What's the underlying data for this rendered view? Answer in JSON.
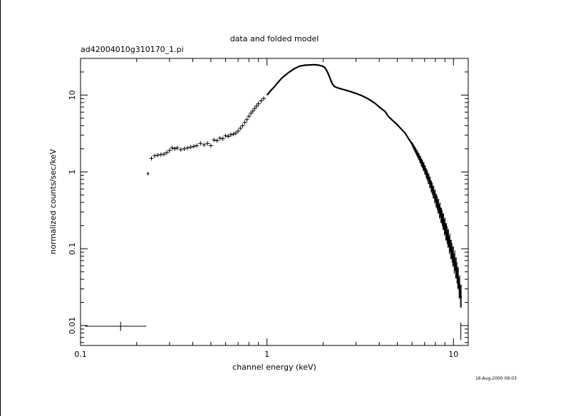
{
  "chart_data": {
    "type": "scatter",
    "title": "data and folded model",
    "subtitle": "ad42004010g310170_1.pi",
    "xlabel": "channel energy (keV)",
    "ylabel": "normalized counts/sec/keV",
    "x_scale": "log",
    "y_scale": "log",
    "xlim": [
      0.1,
      12
    ],
    "ylim": [
      0.0055,
      30
    ],
    "x_ticks": [
      {
        "value": 0.1,
        "label": "0.1"
      },
      {
        "value": 1,
        "label": "1"
      },
      {
        "value": 10,
        "label": "10"
      }
    ],
    "y_ticks": [
      {
        "value": 0.01,
        "label": "0.01"
      },
      {
        "value": 0.1,
        "label": "0.1"
      },
      {
        "value": 1,
        "label": "1"
      },
      {
        "value": 10,
        "label": "10"
      }
    ],
    "grid": false,
    "footer": "16-Aug-2000 09:03",
    "series": [
      {
        "points": [
          {
            "x": 0.164,
            "y": 0.0098,
            "xerr": [
              0.106,
              0.225
            ],
            "yerr": [
              0.0085,
              0.0112
            ]
          },
          {
            "x": 0.23,
            "y": 0.95,
            "xerr": [
              0.226,
              0.234
            ],
            "yerr": [
              0.9,
              1.0
            ]
          },
          {
            "x": 0.24,
            "y": 1.5
          },
          {
            "x": 0.25,
            "y": 1.62
          },
          {
            "x": 0.26,
            "y": 1.65
          },
          {
            "x": 0.27,
            "y": 1.68
          },
          {
            "x": 0.28,
            "y": 1.7
          },
          {
            "x": 0.29,
            "y": 1.78
          },
          {
            "x": 0.3,
            "y": 1.9
          },
          {
            "x": 0.31,
            "y": 2.05
          },
          {
            "x": 0.32,
            "y": 2.0
          },
          {
            "x": 0.33,
            "y": 2.05
          },
          {
            "x": 0.345,
            "y": 1.95
          },
          {
            "x": 0.36,
            "y": 2.0
          },
          {
            "x": 0.375,
            "y": 2.05
          },
          {
            "x": 0.39,
            "y": 2.1
          },
          {
            "x": 0.405,
            "y": 2.15
          },
          {
            "x": 0.42,
            "y": 2.2
          },
          {
            "x": 0.44,
            "y": 2.35
          },
          {
            "x": 0.46,
            "y": 2.25
          },
          {
            "x": 0.48,
            "y": 2.35
          },
          {
            "x": 0.5,
            "y": 2.2
          },
          {
            "x": 0.52,
            "y": 2.6
          },
          {
            "x": 0.54,
            "y": 2.55
          },
          {
            "x": 0.56,
            "y": 2.75
          },
          {
            "x": 0.58,
            "y": 2.7
          },
          {
            "x": 0.6,
            "y": 2.95
          },
          {
            "x": 0.62,
            "y": 2.9
          },
          {
            "x": 0.64,
            "y": 3.05
          },
          {
            "x": 0.66,
            "y": 3.1
          },
          {
            "x": 0.68,
            "y": 3.2
          },
          {
            "x": 0.7,
            "y": 3.4
          },
          {
            "x": 0.72,
            "y": 3.7
          },
          {
            "x": 0.74,
            "y": 4.0
          },
          {
            "x": 0.76,
            "y": 4.4
          },
          {
            "x": 0.78,
            "y": 4.8
          },
          {
            "x": 0.8,
            "y": 5.3
          },
          {
            "x": 0.82,
            "y": 5.8
          },
          {
            "x": 0.84,
            "y": 6.2
          },
          {
            "x": 0.86,
            "y": 6.7
          },
          {
            "x": 0.88,
            "y": 7.2
          },
          {
            "x": 0.9,
            "y": 7.7
          },
          {
            "x": 0.93,
            "y": 8.4
          },
          {
            "x": 0.96,
            "y": 9.0
          }
        ]
      },
      {
        "points": [
          {
            "x": 1.0,
            "y": 10.0
          },
          {
            "x": 1.05,
            "y": 11.5
          },
          {
            "x": 1.1,
            "y": 13.0
          },
          {
            "x": 1.15,
            "y": 14.8
          },
          {
            "x": 1.2,
            "y": 16.6
          },
          {
            "x": 1.3,
            "y": 19.5
          },
          {
            "x": 1.4,
            "y": 22.0
          },
          {
            "x": 1.5,
            "y": 23.8
          },
          {
            "x": 1.6,
            "y": 24.5
          },
          {
            "x": 1.7,
            "y": 24.7
          },
          {
            "x": 1.8,
            "y": 24.8
          },
          {
            "x": 1.9,
            "y": 24.5
          },
          {
            "x": 2.0,
            "y": 23.6
          },
          {
            "x": 2.05,
            "y": 22.5
          },
          {
            "x": 2.1,
            "y": 20.5
          },
          {
            "x": 2.15,
            "y": 18.0
          },
          {
            "x": 2.2,
            "y": 15.5
          },
          {
            "x": 2.25,
            "y": 13.8
          },
          {
            "x": 2.3,
            "y": 12.9
          },
          {
            "x": 2.4,
            "y": 12.4
          },
          {
            "x": 2.6,
            "y": 11.7
          },
          {
            "x": 2.8,
            "y": 11.1
          },
          {
            "x": 3.0,
            "y": 10.5
          },
          {
            "x": 3.2,
            "y": 9.9
          },
          {
            "x": 3.5,
            "y": 8.9
          },
          {
            "x": 3.8,
            "y": 7.8
          },
          {
            "x": 4.0,
            "y": 7.0
          },
          {
            "x": 4.3,
            "y": 6.1
          },
          {
            "x": 4.5,
            "y": 5.2
          },
          {
            "x": 4.8,
            "y": 4.5
          },
          {
            "x": 5.0,
            "y": 4.1
          },
          {
            "x": 5.5,
            "y": 3.2
          },
          {
            "x": 6.0,
            "y": 2.3
          },
          {
            "x": 6.5,
            "y": 1.6
          },
          {
            "x": 7.0,
            "y": 1.1
          },
          {
            "x": 7.5,
            "y": 0.72
          },
          {
            "x": 8.0,
            "y": 0.46
          },
          {
            "x": 8.5,
            "y": 0.3
          },
          {
            "x": 9.0,
            "y": 0.19
          },
          {
            "x": 9.5,
            "y": 0.12
          },
          {
            "x": 10.0,
            "y": 0.075
          },
          {
            "x": 10.3,
            "y": 0.058
          },
          {
            "x": 10.6,
            "y": 0.04
          },
          {
            "x": 10.8,
            "y": 0.03
          },
          {
            "x": 11.0,
            "y": 0.023
          }
        ],
        "scatter_start_x": 6.0
      },
      {
        "points": [
          {
            "x": 10.95,
            "y": 0.0075,
            "xerr": [
              10.9,
              11.0
            ],
            "yerr": [
              0.0065,
              0.011
            ]
          }
        ]
      }
    ]
  }
}
